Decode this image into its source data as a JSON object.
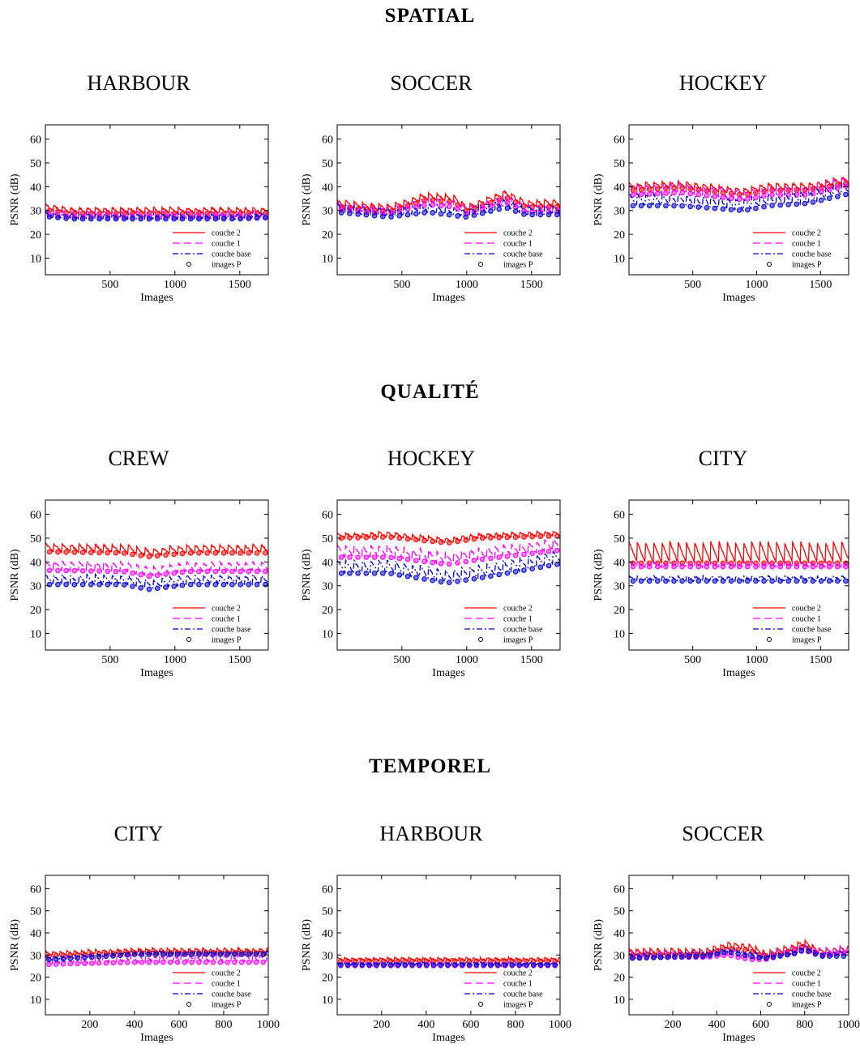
{
  "sections": [
    {
      "title": "SPATIAL",
      "charts": [
        "HARBOUR",
        "SOCCER",
        "HOCKEY"
      ]
    },
    {
      "title": "QUALITÉ",
      "charts": [
        "CREW",
        "HOCKEY",
        "CITY"
      ]
    },
    {
      "title": "TEMPOREL",
      "charts": [
        "CITY",
        "HARBOUR",
        "SOCCER"
      ]
    }
  ],
  "colors": {
    "couche_2": "#ff0000",
    "couche_1": "#ff00ff",
    "couche_base": "#0000cc",
    "images_p": "#000000"
  },
  "chart_data": [
    {
      "type": "line",
      "title": "HARBOUR",
      "section": "SPATIAL",
      "xlabel": "Images",
      "ylabel": "PSNR (dB)",
      "xlim": [
        1,
        1720
      ],
      "ylim": [
        3,
        66
      ],
      "xticks": [
        500,
        1000,
        1500
      ],
      "yticks": [
        10,
        20,
        30,
        40,
        50,
        60
      ],
      "period": 64,
      "series": [
        {
          "name": "couche 2",
          "base": 30.0,
          "drift": [
            [
              0,
              1.5
            ],
            [
              200,
              0
            ],
            [
              1720,
              0
            ]
          ],
          "amp": 2.5
        },
        {
          "name": "couche 1",
          "base": 28.5,
          "drift": [
            [
              0,
              1.0
            ],
            [
              200,
              0
            ],
            [
              1720,
              0
            ]
          ],
          "amp": 2.5
        },
        {
          "name": "couche base",
          "base": 27.5,
          "drift": [
            [
              0,
              1.0
            ],
            [
              200,
              0
            ],
            [
              1500,
              0
            ],
            [
              1720,
              0.5
            ]
          ],
          "amp": 2.0
        }
      ],
      "legend": [
        "couche 2",
        "couche 1",
        "couche base",
        "images P"
      ]
    },
    {
      "type": "line",
      "title": "SOCCER",
      "section": "SPATIAL",
      "xlabel": "Images",
      "ylabel": "PSNR (dB)",
      "xlim": [
        1,
        1720
      ],
      "ylim": [
        3,
        66
      ],
      "xticks": [
        500,
        1000,
        1500
      ],
      "yticks": [
        10,
        20,
        30,
        40,
        50,
        60
      ],
      "period": 64,
      "series": [
        {
          "name": "couche 2",
          "base": 33.0,
          "drift": [
            [
              0,
              0
            ],
            [
              400,
              -2
            ],
            [
              700,
              3
            ],
            [
              900,
              2
            ],
            [
              1000,
              -2
            ],
            [
              1300,
              4
            ],
            [
              1450,
              0
            ],
            [
              1720,
              0
            ]
          ],
          "amp": 3.0
        },
        {
          "name": "couche 1",
          "base": 32.0,
          "drift": [
            [
              0,
              0
            ],
            [
              400,
              -2
            ],
            [
              700,
              2
            ],
            [
              900,
              1
            ],
            [
              1000,
              -2
            ],
            [
              1300,
              3
            ],
            [
              1450,
              -1
            ],
            [
              1720,
              -1
            ]
          ],
          "amp": 3.0
        },
        {
          "name": "couche base",
          "base": 31.0,
          "drift": [
            [
              0,
              0
            ],
            [
              400,
              -2
            ],
            [
              700,
              0
            ],
            [
              1000,
              -2
            ],
            [
              1300,
              2
            ],
            [
              1450,
              -1
            ],
            [
              1720,
              -1
            ]
          ],
          "amp": 3.5
        }
      ],
      "legend": [
        "couche 2",
        "couche 1",
        "couche base",
        "images P"
      ]
    },
    {
      "type": "line",
      "title": "HOCKEY",
      "section": "SPATIAL",
      "xlabel": "Images",
      "ylabel": "PSNR (dB)",
      "xlim": [
        1,
        1720
      ],
      "ylim": [
        3,
        66
      ],
      "xticks": [
        500,
        1000,
        1500
      ],
      "yticks": [
        10,
        20,
        30,
        40,
        50,
        60
      ],
      "period": 64,
      "series": [
        {
          "name": "couche 2",
          "base": 40.0,
          "drift": [
            [
              0,
              0
            ],
            [
              400,
              1
            ],
            [
              900,
              -2
            ],
            [
              1100,
              0
            ],
            [
              1400,
              0
            ],
            [
              1720,
              3
            ]
          ],
          "amp": 3.0
        },
        {
          "name": "couche 1",
          "base": 38.5,
          "drift": [
            [
              0,
              0
            ],
            [
              400,
              1
            ],
            [
              900,
              -2
            ],
            [
              1100,
              0
            ],
            [
              1400,
              0
            ],
            [
              1720,
              4
            ]
          ],
          "amp": 4.0
        },
        {
          "name": "couche base",
          "base": 34.5,
          "drift": [
            [
              0,
              0
            ],
            [
              400,
              0
            ],
            [
              900,
              -2
            ],
            [
              1100,
              0
            ],
            [
              1400,
              1
            ],
            [
              1720,
              5
            ]
          ],
          "amp": 5.0
        }
      ],
      "legend": [
        "couche 2",
        "couche 1",
        "couche base",
        "images P"
      ]
    },
    {
      "type": "line",
      "title": "CREW",
      "section": "QUALITÉ",
      "xlabel": "Images",
      "ylabel": "PSNR (dB)",
      "xlim": [
        1,
        1720
      ],
      "ylim": [
        3,
        66
      ],
      "xticks": [
        500,
        1000,
        1500
      ],
      "yticks": [
        10,
        20,
        30,
        40,
        50,
        60
      ],
      "period": 64,
      "series": [
        {
          "name": "couche 2",
          "base": 45.5,
          "drift": [
            [
              0,
              0.5
            ],
            [
              600,
              0
            ],
            [
              800,
              -1.5
            ],
            [
              1100,
              0
            ],
            [
              1720,
              0
            ]
          ],
          "amp": 3.5
        },
        {
          "name": "couche 1",
          "base": 38.0,
          "drift": [
            [
              0,
              0.5
            ],
            [
              600,
              0
            ],
            [
              800,
              -2
            ],
            [
              1100,
              0
            ],
            [
              1720,
              0
            ]
          ],
          "amp": 4.0
        },
        {
          "name": "couche base",
          "base": 32.5,
          "drift": [
            [
              0,
              0
            ],
            [
              600,
              0
            ],
            [
              800,
              -2
            ],
            [
              1100,
              0
            ],
            [
              1720,
              0
            ]
          ],
          "amp": 4.0
        }
      ],
      "legend": [
        "couche 2",
        "couche 1",
        "couche base",
        "images P"
      ]
    },
    {
      "type": "line",
      "title": "HOCKEY",
      "section": "QUALITÉ",
      "xlabel": "Images",
      "ylabel": "PSNR (dB)",
      "xlim": [
        1,
        1720
      ],
      "ylim": [
        3,
        66
      ],
      "xticks": [
        500,
        1000,
        1500
      ],
      "yticks": [
        10,
        20,
        30,
        40,
        50,
        60
      ],
      "period": 64,
      "series": [
        {
          "name": "couche 2",
          "base": 51.0,
          "drift": [
            [
              0,
              0
            ],
            [
              400,
              0.5
            ],
            [
              850,
              -2
            ],
            [
              1100,
              0
            ],
            [
              1720,
              1
            ]
          ],
          "amp": 2.0
        },
        {
          "name": "couche 1",
          "base": 44.5,
          "drift": [
            [
              0,
              0
            ],
            [
              400,
              0
            ],
            [
              850,
              -3
            ],
            [
              1100,
              -1
            ],
            [
              1720,
              3
            ]
          ],
          "amp": 5.0
        },
        {
          "name": "couche base",
          "base": 38.0,
          "drift": [
            [
              0,
              0
            ],
            [
              400,
              0
            ],
            [
              850,
              -4
            ],
            [
              1100,
              -2
            ],
            [
              1720,
              4
            ]
          ],
          "amp": 5.5
        }
      ],
      "legend": [
        "couche 2",
        "couche 1",
        "couche base",
        "images P"
      ]
    },
    {
      "type": "line",
      "title": "CITY",
      "section": "QUALITÉ",
      "xlabel": "Images",
      "ylabel": "PSNR (dB)",
      "xlim": [
        1,
        1720
      ],
      "ylim": [
        3,
        66
      ],
      "xticks": [
        500,
        1000,
        1500
      ],
      "yticks": [
        10,
        20,
        30,
        40,
        50,
        60
      ],
      "period": 64,
      "series": [
        {
          "name": "couche 2",
          "base": 44.0,
          "drift": [
            [
              0,
              0
            ],
            [
              1720,
              0
            ]
          ],
          "amp": 9.0
        },
        {
          "name": "couche 1",
          "base": 39.0,
          "drift": [
            [
              0,
              0
            ],
            [
              1720,
              0
            ]
          ],
          "amp": 2.0
        },
        {
          "name": "couche base",
          "base": 33.0,
          "drift": [
            [
              0,
              0
            ],
            [
              1720,
              0
            ]
          ],
          "amp": 2.0
        }
      ],
      "legend": [
        "couche 2",
        "couche 1",
        "couche base",
        "images P"
      ]
    },
    {
      "type": "line",
      "title": "CITY",
      "section": "TEMPOREL",
      "xlabel": "Images",
      "ylabel": "PSNR (dB)",
      "xlim": [
        1,
        1000
      ],
      "ylim": [
        3,
        66
      ],
      "xticks": [
        200,
        400,
        600,
        800,
        1000
      ],
      "yticks": [
        10,
        20,
        30,
        40,
        50,
        60
      ],
      "period": 32,
      "series": [
        {
          "name": "couche 2",
          "base": 31.5,
          "drift": [
            [
              0,
              -1
            ],
            [
              400,
              0.5
            ],
            [
              1000,
              0.5
            ]
          ],
          "amp": 2.0
        },
        {
          "name": "couche 1",
          "base": 28.5,
          "drift": [
            [
              0,
              -1
            ],
            [
              400,
              0
            ],
            [
              1000,
              0
            ]
          ],
          "amp": 3.5
        },
        {
          "name": "couche base",
          "base": 30.5,
          "drift": [
            [
              0,
              -2
            ],
            [
              400,
              0.5
            ],
            [
              1000,
              0.5
            ]
          ],
          "amp": 1.5
        }
      ],
      "legend": [
        "couche 2",
        "couche 1",
        "couche base",
        "images P"
      ]
    },
    {
      "type": "line",
      "title": "HARBOUR",
      "section": "TEMPOREL",
      "xlabel": "Images",
      "ylabel": "PSNR (dB)",
      "xlim": [
        1,
        1000
      ],
      "ylim": [
        3,
        66
      ],
      "xticks": [
        200,
        400,
        600,
        800,
        1000
      ],
      "yticks": [
        10,
        20,
        30,
        40,
        50,
        60
      ],
      "period": 32,
      "series": [
        {
          "name": "couche 2",
          "base": 27.5,
          "drift": [
            [
              0,
              0.5
            ],
            [
              1000,
              0.5
            ]
          ],
          "amp": 1.5
        },
        {
          "name": "couche 1",
          "base": 26.0,
          "drift": [
            [
              0,
              0
            ],
            [
              1000,
              0
            ]
          ],
          "amp": 1.5
        },
        {
          "name": "couche base",
          "base": 26.0,
          "drift": [
            [
              0,
              0
            ],
            [
              1000,
              0
            ]
          ],
          "amp": 1.0
        }
      ],
      "legend": [
        "couche 2",
        "couche 1",
        "couche base",
        "images P"
      ]
    },
    {
      "type": "line",
      "title": "SOCCER",
      "section": "TEMPOREL",
      "xlabel": "Images",
      "ylabel": "PSNR (dB)",
      "xlim": [
        1,
        1000
      ],
      "ylim": [
        3,
        66
      ],
      "xticks": [
        200,
        400,
        600,
        800,
        1000
      ],
      "yticks": [
        10,
        20,
        30,
        40,
        50,
        60
      ],
      "period": 32,
      "series": [
        {
          "name": "couche 2",
          "base": 31.5,
          "drift": [
            [
              0,
              0
            ],
            [
              350,
              0
            ],
            [
              450,
              3
            ],
            [
              550,
              2
            ],
            [
              620,
              -1
            ],
            [
              750,
              2
            ],
            [
              800,
              4
            ],
            [
              870,
              0
            ],
            [
              1000,
              1
            ]
          ],
          "amp": 3.0
        },
        {
          "name": "couche 1",
          "base": 30.5,
          "drift": [
            [
              0,
              0
            ],
            [
              350,
              0
            ],
            [
              450,
              1
            ],
            [
              550,
              -1
            ],
            [
              620,
              -1
            ],
            [
              750,
              2
            ],
            [
              800,
              3
            ],
            [
              870,
              1
            ],
            [
              1000,
              2
            ]
          ],
          "amp": 3.0
        },
        {
          "name": "couche base",
          "base": 30.5,
          "drift": [
            [
              0,
              -1
            ],
            [
              350,
              0
            ],
            [
              450,
              2
            ],
            [
              550,
              0
            ],
            [
              620,
              -1
            ],
            [
              750,
              1
            ],
            [
              800,
              3
            ],
            [
              870,
              0
            ],
            [
              1000,
              0
            ]
          ],
          "amp": 2.0
        }
      ],
      "legend": [
        "couche 2",
        "couche 1",
        "couche base",
        "images P"
      ]
    }
  ]
}
